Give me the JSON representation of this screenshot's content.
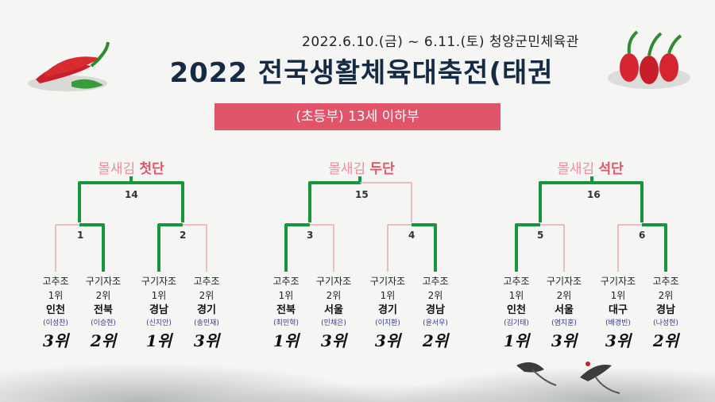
{
  "header": {
    "date_venue": "2022.6.10.(금) ~ 6.11.(토)  청양군민체육관",
    "title": "2022 전국생활체육대축전(태권",
    "category_banner": "(초등부) 13세 이하부"
  },
  "colors": {
    "accent_red": "#e05569",
    "win_line": "#17963a",
    "lose_line": "#e8a9b2",
    "title": "#152b45"
  },
  "divisions": [
    {
      "label_prefix": "몰새김",
      "label_rank": "첫단",
      "final_match": "14",
      "left_match": "1",
      "right_match": "2",
      "entries": [
        {
          "group": "고추조",
          "seed": "1위",
          "region": "인천",
          "name": "(이성찬)",
          "place": "3위"
        },
        {
          "group": "구기자조",
          "seed": "2위",
          "region": "전북",
          "name": "(이승현)",
          "place": "2위"
        },
        {
          "group": "구기자조",
          "seed": "1위",
          "region": "경남",
          "name": "(신지안)",
          "place": "1위"
        },
        {
          "group": "고추조",
          "seed": "2위",
          "region": "경기",
          "name": "(송민재)",
          "place": "3위"
        }
      ]
    },
    {
      "label_prefix": "몰새김",
      "label_rank": "두단",
      "final_match": "15",
      "left_match": "3",
      "right_match": "4",
      "entries": [
        {
          "group": "고추조",
          "seed": "1위",
          "region": "전북",
          "name": "(최민혁)",
          "place": "1위"
        },
        {
          "group": "구기자조",
          "seed": "2위",
          "region": "서울",
          "name": "(민채은)",
          "place": "3위"
        },
        {
          "group": "구기자조",
          "seed": "1위",
          "region": "경기",
          "name": "(이지환)",
          "place": "3위"
        },
        {
          "group": "고추조",
          "seed": "2위",
          "region": "경남",
          "name": "(윤서우)",
          "place": "2위"
        }
      ]
    },
    {
      "label_prefix": "몰새김",
      "label_rank": "석단",
      "final_match": "16",
      "left_match": "5",
      "right_match": "6",
      "entries": [
        {
          "group": "고추조",
          "seed": "1위",
          "region": "인천",
          "name": "(김기태)",
          "place": "1위"
        },
        {
          "group": "구기자조",
          "seed": "2위",
          "region": "서울",
          "name": "(염지훈)",
          "place": "3위"
        },
        {
          "group": "구기자조",
          "seed": "1위",
          "region": "대구",
          "name": "(배경빈)",
          "place": "3위"
        },
        {
          "group": "고추조",
          "seed": "2위",
          "region": "경남",
          "name": "(나성현)",
          "place": "2위"
        }
      ]
    }
  ]
}
